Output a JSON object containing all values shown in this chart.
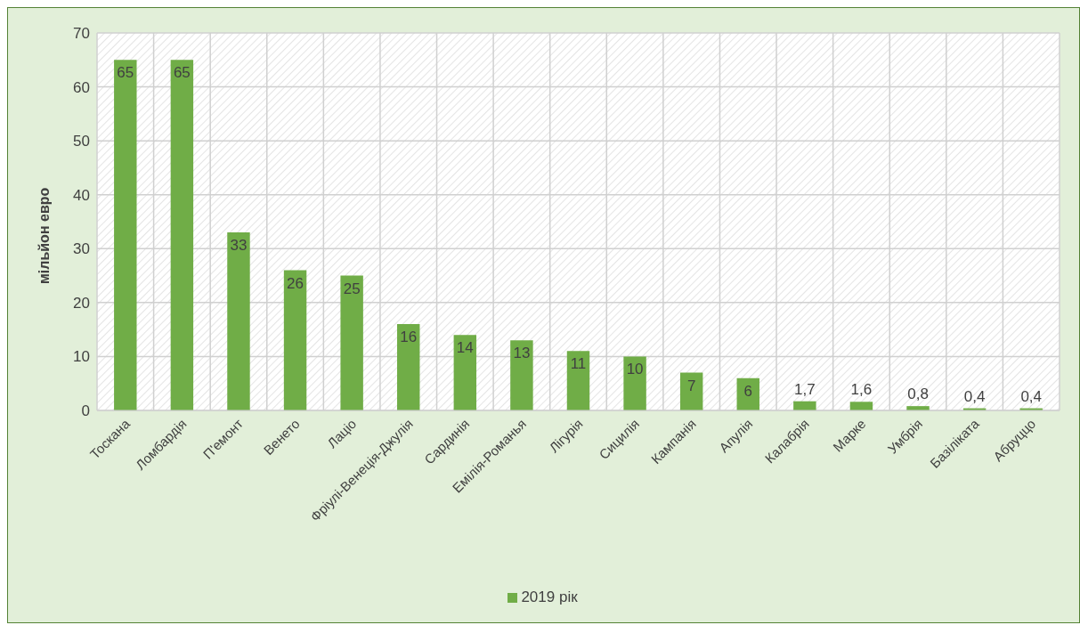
{
  "chart_data": {
    "type": "bar",
    "ylabel": "мільйон евро",
    "categories": [
      "Тоскана",
      "Ломбардія",
      "П'емонт",
      "Венето",
      "Лаціо",
      "Фріулі-Венеція-Джулія",
      "Сардинія",
      "Емілія-Романья",
      "Лігурія",
      "Сицилія",
      "Кампанія",
      "Апулія",
      "Калабрія",
      "Марке",
      "Умбрія",
      "Базіліката",
      "Абруццо"
    ],
    "series": [
      {
        "name": "2019 рік",
        "color": "#70ad47",
        "values": [
          65,
          65,
          33,
          26,
          25,
          16,
          14,
          13,
          11,
          10,
          7,
          6,
          1.7,
          1.6,
          0.8,
          0.4,
          0.4
        ],
        "value_labels": [
          "65",
          "65",
          "33",
          "26",
          "25",
          "16",
          "14",
          "13",
          "11",
          "10",
          "7",
          "6",
          "1,7",
          "1,6",
          "0,8",
          "0,4",
          "0,4"
        ]
      }
    ],
    "ylim": [
      0,
      70
    ],
    "yticks": [
      0,
      10,
      20,
      30,
      40,
      50,
      60,
      70
    ],
    "grid": true,
    "legend": "bottom"
  }
}
